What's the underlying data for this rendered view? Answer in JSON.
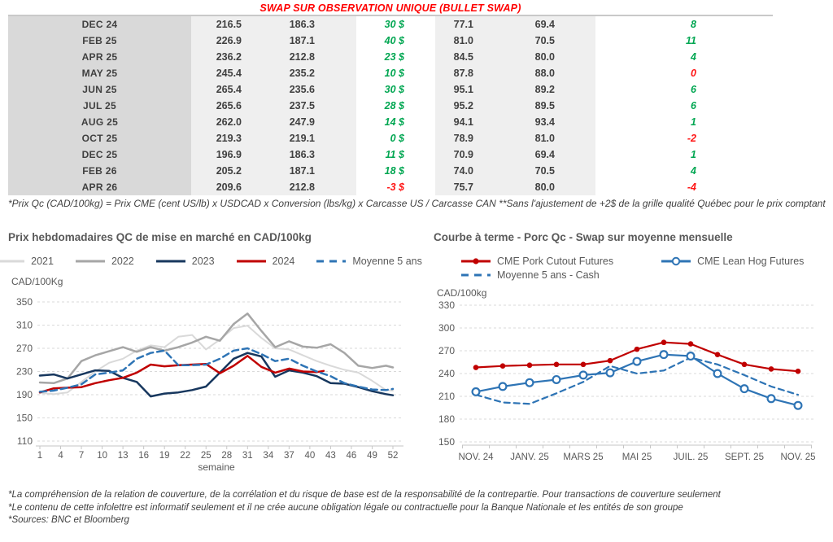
{
  "title": "SWAP SUR OBSERVATION UNIQUE (BULLET SWAP)",
  "colors": {
    "positive": "#00A651",
    "negative": "#FF1414",
    "title_red": "#FF0000",
    "grid": "#D9D9D9",
    "axis_text": "#595959"
  },
  "table": {
    "rows": [
      {
        "month": "DEC 24",
        "v1": "216.5",
        "v2": "186.3",
        "d": "30 $",
        "d_neg": false,
        "v3": "77.1",
        "v4": "69.4",
        "diff": "8",
        "diff_neg": false
      },
      {
        "month": "FEB 25",
        "v1": "226.9",
        "v2": "187.1",
        "d": "40 $",
        "d_neg": false,
        "v3": "81.0",
        "v4": "70.5",
        "diff": "11",
        "diff_neg": false
      },
      {
        "month": "APR 25",
        "v1": "236.2",
        "v2": "212.8",
        "d": "23 $",
        "d_neg": false,
        "v3": "84.5",
        "v4": "80.0",
        "diff": "4",
        "diff_neg": false
      },
      {
        "month": "MAY 25",
        "v1": "245.4",
        "v2": "235.2",
        "d": "10 $",
        "d_neg": false,
        "v3": "87.8",
        "v4": "88.0",
        "diff": "0",
        "diff_neg": true
      },
      {
        "month": "JUN 25",
        "v1": "265.4",
        "v2": "235.6",
        "d": "30 $",
        "d_neg": false,
        "v3": "95.1",
        "v4": "89.2",
        "diff": "6",
        "diff_neg": false
      },
      {
        "month": "JUL 25",
        "v1": "265.6",
        "v2": "237.5",
        "d": "28 $",
        "d_neg": false,
        "v3": "95.2",
        "v4": "89.5",
        "diff": "6",
        "diff_neg": false
      },
      {
        "month": "AUG 25",
        "v1": "262.0",
        "v2": "247.9",
        "d": "14 $",
        "d_neg": false,
        "v3": "94.1",
        "v4": "93.4",
        "diff": "1",
        "diff_neg": false
      },
      {
        "month": "OCT 25",
        "v1": "219.3",
        "v2": "219.1",
        "d": "0 $",
        "d_neg": false,
        "v3": "78.9",
        "v4": "81.0",
        "diff": "-2",
        "diff_neg": true
      },
      {
        "month": "DEC 25",
        "v1": "196.9",
        "v2": "186.3",
        "d": "11 $",
        "d_neg": false,
        "v3": "70.9",
        "v4": "69.4",
        "diff": "1",
        "diff_neg": false
      },
      {
        "month": "FEB 26",
        "v1": "205.2",
        "v2": "187.1",
        "d": "18 $",
        "d_neg": false,
        "v3": "74.0",
        "v4": "70.5",
        "diff": "4",
        "diff_neg": false
      },
      {
        "month": "APR 26",
        "v1": "209.6",
        "v2": "212.8",
        "d": "-3 $",
        "d_neg": true,
        "v3": "75.7",
        "v4": "80.0",
        "diff": "-4",
        "diff_neg": true
      }
    ]
  },
  "table_footnote": "*Prix Qc (CAD/100kg) = Prix CME (cent US/lb) x USDCAD x Conversion (lbs/kg) x Carcasse US / Carcasse CAN **Sans l'ajustement de +2$ de la grille qualité Québec pour le prix comptant",
  "chart_data": [
    {
      "type": "line",
      "title": "Prix hebdomadaires QC de mise en marché en CAD/100kg",
      "ylabel": "CAD/100Kg",
      "xlabel": "semaine",
      "ylim": [
        110,
        350
      ],
      "yticks": [
        350,
        310,
        270,
        230,
        190,
        150,
        110
      ],
      "xticks": [
        1,
        4,
        7,
        10,
        13,
        16,
        19,
        22,
        25,
        28,
        31,
        34,
        37,
        40,
        43,
        46,
        49,
        52
      ],
      "x_weeks": [
        1,
        3,
        5,
        7,
        9,
        11,
        13,
        15,
        17,
        19,
        21,
        23,
        25,
        27,
        29,
        31,
        33,
        35,
        37,
        39,
        41,
        43,
        45,
        47,
        49,
        51,
        52
      ],
      "grid": "dashed-horizontal",
      "legend_position": "top-center",
      "series": [
        {
          "name": "2021",
          "color": "#D9D9D9",
          "width": 2,
          "values": [
            193,
            191,
            194,
            212,
            230,
            245,
            252,
            266,
            275,
            272,
            290,
            293,
            268,
            285,
            305,
            309,
            288,
            270,
            268,
            258,
            248,
            240,
            233,
            228,
            214,
            198,
            197
          ]
        },
        {
          "name": "2022",
          "color": "#A6A6A6",
          "width": 2.5,
          "values": [
            211,
            210,
            218,
            248,
            258,
            265,
            272,
            264,
            272,
            266,
            272,
            280,
            290,
            283,
            312,
            330,
            300,
            272,
            282,
            273,
            271,
            277,
            262,
            240,
            236,
            240,
            237
          ]
        },
        {
          "name": "2023",
          "color": "#17375E",
          "width": 2.5,
          "values": [
            223,
            225,
            218,
            225,
            232,
            231,
            219,
            212,
            187,
            192,
            194,
            198,
            204,
            228,
            252,
            262,
            256,
            221,
            232,
            228,
            222,
            210,
            209,
            203,
            196,
            191,
            189
          ]
        },
        {
          "name": "2024",
          "color": "#C00000",
          "width": 2.5,
          "x": [
            1,
            3,
            5,
            7,
            9,
            11,
            13,
            15,
            17,
            19,
            21,
            23,
            25,
            27,
            29,
            31,
            33,
            35,
            37,
            39,
            41,
            42
          ],
          "values": [
            194,
            201,
            202,
            203,
            210,
            215,
            219,
            228,
            242,
            239,
            241,
            242,
            243,
            227,
            240,
            257,
            238,
            228,
            235,
            230,
            229,
            231
          ]
        },
        {
          "name": "Moyenne 5 ans",
          "color": "#2E74B5",
          "width": 2.5,
          "dash": "8 5",
          "values": [
            195,
            197,
            202,
            208,
            225,
            228,
            232,
            252,
            262,
            266,
            241,
            241,
            242,
            252,
            266,
            270,
            260,
            248,
            252,
            240,
            230,
            222,
            210,
            204,
            199,
            198,
            200
          ]
        }
      ]
    },
    {
      "type": "line",
      "title": "Courbe à terme - Porc Qc - Swap sur moyenne mensuelle",
      "ylabel": "CAD/100kg",
      "ylim": [
        150,
        330
      ],
      "yticks": [
        330,
        300,
        270,
        240,
        210,
        180,
        150
      ],
      "categories": [
        "NOV. 24",
        "DÉC. 24",
        "JANV. 25",
        "FÉVR. 25",
        "MARS 25",
        "AVR. 25",
        "MAI 25",
        "JUIN 25",
        "JUIL. 25",
        "AOÛT 25",
        "SEPT. 25",
        "OCT. 25",
        "NOV. 25"
      ],
      "xtick_labels": [
        "NOV. 24",
        "JANV. 25",
        "MARS 25",
        "MAI 25",
        "JUIL. 25",
        "SEPT. 25",
        "NOV. 25"
      ],
      "grid": "dashed-horizontal",
      "legend_position": "top-left",
      "series": [
        {
          "name": "CME Pork Cutout Futures",
          "color": "#C00000",
          "marker": "filled-circle",
          "values": [
            248,
            250,
            251,
            252,
            252,
            257,
            272,
            281,
            279,
            265,
            252,
            246,
            243
          ]
        },
        {
          "name": "CME Lean Hog Futures",
          "color": "#2E74B5",
          "marker": "open-circle",
          "values": [
            216,
            223,
            228,
            232,
            238,
            241,
            256,
            265,
            263,
            240,
            220,
            207,
            198
          ]
        },
        {
          "name": "Moyenne 5 ans - Cash",
          "color": "#2E74B5",
          "dash": "7 5",
          "values": [
            212,
            202,
            200,
            214,
            229,
            250,
            240,
            244,
            261,
            252,
            238,
            223,
            212
          ]
        }
      ]
    }
  ],
  "footnotes": [
    "*La compréhension de la relation de couverture, de la corrélation et du risque de base est de la responsabilité de la contrepartie. Pour transactions de couverture seulement",
    "*Le contenu de cette infolettre est informatif seulement et il ne crée aucune obligation légale ou contractuelle pour la Banque Nationale et les entités de son groupe",
    "*Sources: BNC et Bloomberg"
  ]
}
